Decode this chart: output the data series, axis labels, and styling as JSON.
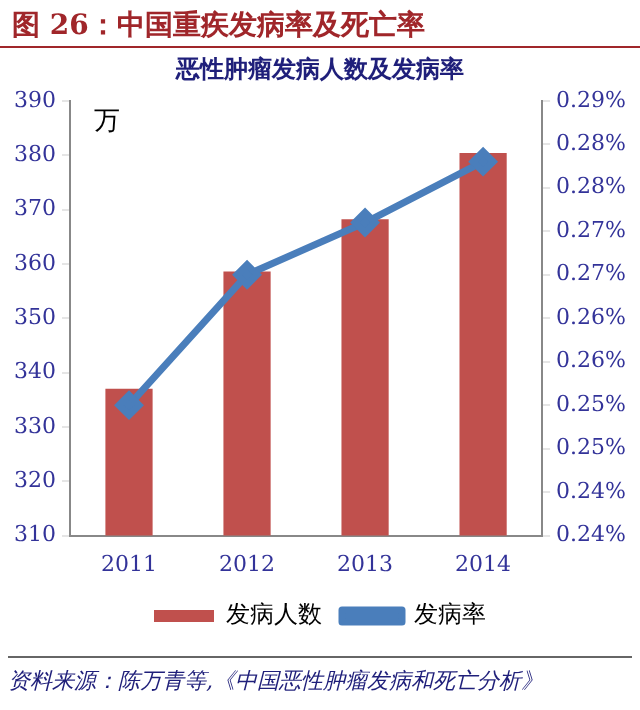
{
  "chart_data": {
    "type": "bar",
    "title": "图 26：中国重疾发病率及死亡率",
    "subtitle": "恶性肿瘤发病人数及发病率",
    "ylabel": "万",
    "categories": [
      "2011",
      "2012",
      "2013",
      "2014"
    ],
    "series": [
      {
        "name": "发病人数",
        "color": "#c0504d",
        "values": [
          337,
          358.6,
          368.2,
          380.4
        ]
      },
      {
        "name": "发病率",
        "type": "line",
        "axis": "y2",
        "color": "#4a7ebb",
        "values": [
          0.255,
          0.27,
          0.276,
          0.283
        ]
      }
    ],
    "ylim": [
      310,
      390
    ],
    "yticks": [
      310,
      320,
      330,
      340,
      350,
      360,
      370,
      380,
      390
    ],
    "y2lim": [
      0.24,
      0.29
    ],
    "y2ticks": [
      {
        "value": 0.24,
        "label": "0.24%"
      },
      {
        "value": 0.245,
        "label": "0.24%"
      },
      {
        "value": 0.25,
        "label": "0.25%"
      },
      {
        "value": 0.255,
        "label": "0.25%"
      },
      {
        "value": 0.26,
        "label": "0.26%"
      },
      {
        "value": 0.265,
        "label": "0.26%"
      },
      {
        "value": 0.27,
        "label": "0.27%"
      },
      {
        "value": 0.275,
        "label": "0.27%"
      },
      {
        "value": 0.28,
        "label": "0.28%"
      },
      {
        "value": 0.285,
        "label": "0.28%"
      },
      {
        "value": 0.29,
        "label": "0.29%"
      }
    ],
    "annotations": [
      "资料来源：陈万青等,《中国恶性肿瘤发病和死亡分析》"
    ],
    "grid": false,
    "legend": "bottom",
    "marker": "diamond",
    "line_style": "solid"
  }
}
